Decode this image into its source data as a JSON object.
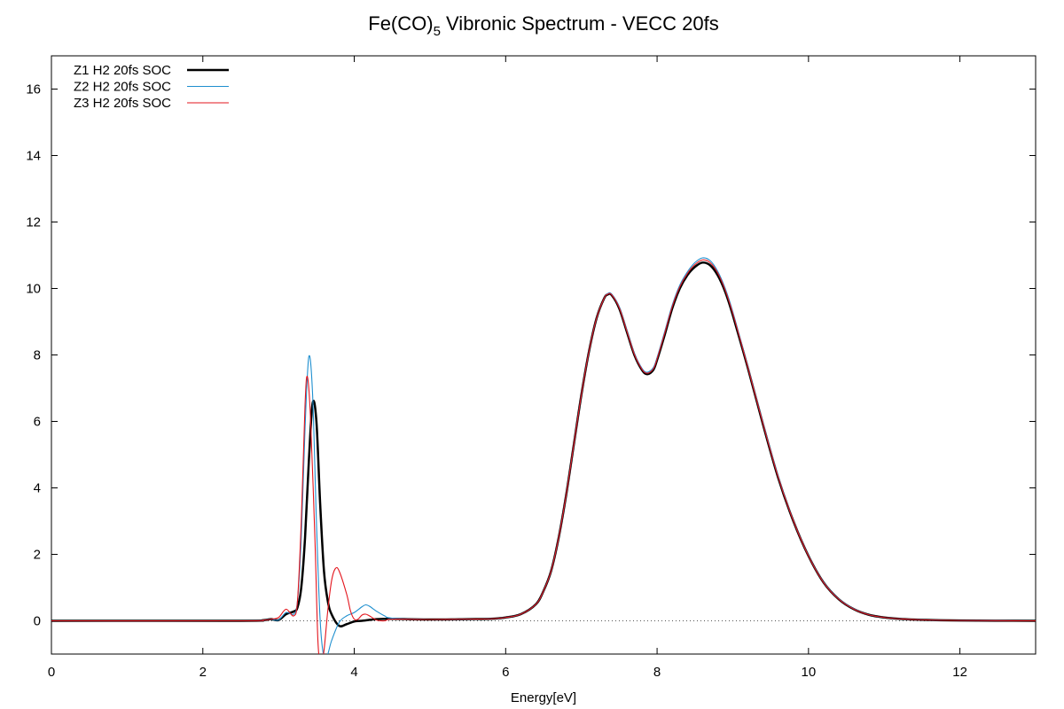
{
  "chart_data": {
    "type": "line",
    "title": "Fe(CO)",
    "title_subscript": "5",
    "title_rest": " Vibronic Spectrum - VECC 20fs",
    "xlabel": "Energy[eV]",
    "ylabel": "",
    "xlim": [
      0,
      13
    ],
    "ylim": [
      -1,
      17
    ],
    "xticks": [
      0,
      2,
      4,
      6,
      8,
      10,
      12
    ],
    "yticks": [
      0,
      2,
      4,
      6,
      8,
      10,
      12,
      14,
      16
    ],
    "grid": false,
    "legend_position": "top-left",
    "zero_line": {
      "y": 0,
      "style": "dotted"
    },
    "series": [
      {
        "name": "Z1 H2 20fs SOC",
        "color": "#000000",
        "style": "thick",
        "points": [
          [
            0,
            0
          ],
          [
            2.5,
            0
          ],
          [
            2.8,
            0.02
          ],
          [
            2.9,
            0.05
          ],
          [
            3.0,
            0.02
          ],
          [
            3.1,
            0.2
          ],
          [
            3.2,
            0.28
          ],
          [
            3.25,
            0.4
          ],
          [
            3.3,
            1.0
          ],
          [
            3.35,
            2.5
          ],
          [
            3.4,
            4.8
          ],
          [
            3.45,
            6.55
          ],
          [
            3.5,
            6.0
          ],
          [
            3.55,
            3.5
          ],
          [
            3.6,
            1.5
          ],
          [
            3.65,
            0.6
          ],
          [
            3.7,
            0.2
          ],
          [
            3.8,
            -0.15
          ],
          [
            3.9,
            -0.1
          ],
          [
            4.0,
            -0.02
          ],
          [
            4.1,
            0.0
          ],
          [
            4.3,
            0.05
          ],
          [
            4.5,
            0.06
          ],
          [
            5.0,
            0.04
          ],
          [
            5.5,
            0.05
          ],
          [
            5.8,
            0.06
          ],
          [
            6.0,
            0.1
          ],
          [
            6.2,
            0.2
          ],
          [
            6.4,
            0.5
          ],
          [
            6.5,
            0.9
          ],
          [
            6.6,
            1.5
          ],
          [
            6.7,
            2.5
          ],
          [
            6.8,
            3.8
          ],
          [
            6.9,
            5.3
          ],
          [
            7.0,
            6.8
          ],
          [
            7.1,
            8.1
          ],
          [
            7.2,
            9.1
          ],
          [
            7.3,
            9.7
          ],
          [
            7.35,
            9.82
          ],
          [
            7.4,
            9.8
          ],
          [
            7.5,
            9.4
          ],
          [
            7.6,
            8.7
          ],
          [
            7.7,
            8.0
          ],
          [
            7.8,
            7.55
          ],
          [
            7.87,
            7.42
          ],
          [
            7.95,
            7.55
          ],
          [
            8.0,
            7.85
          ],
          [
            8.1,
            8.6
          ],
          [
            8.2,
            9.4
          ],
          [
            8.3,
            10.0
          ],
          [
            8.4,
            10.4
          ],
          [
            8.5,
            10.65
          ],
          [
            8.6,
            10.78
          ],
          [
            8.7,
            10.7
          ],
          [
            8.8,
            10.4
          ],
          [
            8.9,
            9.9
          ],
          [
            9.0,
            9.2
          ],
          [
            9.2,
            7.6
          ],
          [
            9.4,
            5.9
          ],
          [
            9.6,
            4.3
          ],
          [
            9.8,
            3.0
          ],
          [
            10.0,
            1.95
          ],
          [
            10.2,
            1.15
          ],
          [
            10.4,
            0.65
          ],
          [
            10.6,
            0.35
          ],
          [
            10.8,
            0.18
          ],
          [
            11.0,
            0.1
          ],
          [
            11.2,
            0.06
          ],
          [
            11.5,
            0.03
          ],
          [
            12.0,
            0.01
          ],
          [
            13.0,
            0.0
          ]
        ]
      },
      {
        "name": "Z2 H2 20fs SOC",
        "color": "#1e8fcf",
        "style": "thin",
        "points": [
          [
            0,
            0
          ],
          [
            2.5,
            0
          ],
          [
            2.8,
            0.02
          ],
          [
            2.9,
            0.05
          ],
          [
            3.0,
            0.02
          ],
          [
            3.1,
            0.25
          ],
          [
            3.2,
            0.2
          ],
          [
            3.25,
            0.6
          ],
          [
            3.3,
            2.5
          ],
          [
            3.35,
            5.8
          ],
          [
            3.4,
            7.95
          ],
          [
            3.45,
            6.8
          ],
          [
            3.5,
            3.0
          ],
          [
            3.55,
            0.0
          ],
          [
            3.6,
            -1.1
          ],
          [
            3.65,
            -1.0
          ],
          [
            3.7,
            -0.6
          ],
          [
            3.8,
            -0.05
          ],
          [
            3.9,
            0.15
          ],
          [
            4.0,
            0.25
          ],
          [
            4.1,
            0.42
          ],
          [
            4.15,
            0.48
          ],
          [
            4.2,
            0.44
          ],
          [
            4.3,
            0.28
          ],
          [
            4.4,
            0.15
          ],
          [
            4.5,
            0.08
          ],
          [
            5.0,
            0.04
          ],
          [
            5.5,
            0.05
          ],
          [
            5.8,
            0.06
          ],
          [
            6.0,
            0.1
          ],
          [
            6.2,
            0.2
          ],
          [
            6.4,
            0.5
          ],
          [
            6.5,
            0.9
          ],
          [
            6.6,
            1.5
          ],
          [
            6.7,
            2.5
          ],
          [
            6.8,
            3.8
          ],
          [
            6.9,
            5.3
          ],
          [
            7.0,
            6.8
          ],
          [
            7.1,
            8.1
          ],
          [
            7.2,
            9.1
          ],
          [
            7.3,
            9.7
          ],
          [
            7.35,
            9.85
          ],
          [
            7.4,
            9.83
          ],
          [
            7.5,
            9.45
          ],
          [
            7.6,
            8.75
          ],
          [
            7.7,
            8.05
          ],
          [
            7.8,
            7.6
          ],
          [
            7.87,
            7.48
          ],
          [
            7.95,
            7.62
          ],
          [
            8.0,
            7.92
          ],
          [
            8.1,
            8.7
          ],
          [
            8.2,
            9.5
          ],
          [
            8.3,
            10.1
          ],
          [
            8.4,
            10.5
          ],
          [
            8.5,
            10.78
          ],
          [
            8.6,
            10.92
          ],
          [
            8.7,
            10.84
          ],
          [
            8.8,
            10.52
          ],
          [
            8.9,
            10.0
          ],
          [
            9.0,
            9.3
          ],
          [
            9.2,
            7.65
          ],
          [
            9.4,
            5.95
          ],
          [
            9.6,
            4.35
          ],
          [
            9.8,
            3.02
          ],
          [
            10.0,
            1.96
          ],
          [
            10.2,
            1.16
          ],
          [
            10.4,
            0.66
          ],
          [
            10.6,
            0.36
          ],
          [
            10.8,
            0.18
          ],
          [
            11.0,
            0.1
          ],
          [
            11.2,
            0.06
          ],
          [
            11.5,
            0.03
          ],
          [
            12.0,
            0.01
          ],
          [
            13.0,
            0.0
          ]
        ]
      },
      {
        "name": "Z3 H2 20fs SOC",
        "color": "#e3141c",
        "style": "thin",
        "points": [
          [
            0,
            0
          ],
          [
            2.5,
            0
          ],
          [
            2.8,
            0.02
          ],
          [
            2.9,
            0.05
          ],
          [
            3.0,
            0.1
          ],
          [
            3.1,
            0.35
          ],
          [
            3.2,
            0.15
          ],
          [
            3.25,
            0.6
          ],
          [
            3.3,
            3.0
          ],
          [
            3.35,
            6.5
          ],
          [
            3.38,
            7.35
          ],
          [
            3.42,
            6.2
          ],
          [
            3.48,
            2.5
          ],
          [
            3.52,
            -0.6
          ],
          [
            3.56,
            -1.3
          ],
          [
            3.6,
            -0.9
          ],
          [
            3.65,
            0.3
          ],
          [
            3.7,
            1.2
          ],
          [
            3.75,
            1.57
          ],
          [
            3.8,
            1.5
          ],
          [
            3.9,
            0.8
          ],
          [
            3.95,
            0.3
          ],
          [
            4.0,
            0.05
          ],
          [
            4.05,
            0.05
          ],
          [
            4.1,
            0.17
          ],
          [
            4.15,
            0.2
          ],
          [
            4.2,
            0.15
          ],
          [
            4.3,
            0.02
          ],
          [
            4.4,
            0.0
          ],
          [
            4.5,
            0.05
          ],
          [
            5.0,
            0.04
          ],
          [
            5.5,
            0.05
          ],
          [
            5.8,
            0.06
          ],
          [
            6.0,
            0.1
          ],
          [
            6.2,
            0.2
          ],
          [
            6.4,
            0.5
          ],
          [
            6.5,
            0.9
          ],
          [
            6.6,
            1.5
          ],
          [
            6.7,
            2.5
          ],
          [
            6.8,
            3.8
          ],
          [
            6.9,
            5.3
          ],
          [
            7.0,
            6.8
          ],
          [
            7.1,
            8.1
          ],
          [
            7.2,
            9.1
          ],
          [
            7.3,
            9.7
          ],
          [
            7.35,
            9.83
          ],
          [
            7.4,
            9.81
          ],
          [
            7.5,
            9.42
          ],
          [
            7.6,
            8.72
          ],
          [
            7.7,
            8.02
          ],
          [
            7.8,
            7.57
          ],
          [
            7.87,
            7.45
          ],
          [
            7.95,
            7.58
          ],
          [
            8.0,
            7.88
          ],
          [
            8.1,
            8.65
          ],
          [
            8.2,
            9.45
          ],
          [
            8.3,
            10.05
          ],
          [
            8.4,
            10.45
          ],
          [
            8.5,
            10.72
          ],
          [
            8.6,
            10.86
          ],
          [
            8.7,
            10.78
          ],
          [
            8.8,
            10.47
          ],
          [
            8.9,
            9.95
          ],
          [
            9.0,
            9.25
          ],
          [
            9.2,
            7.62
          ],
          [
            9.4,
            5.92
          ],
          [
            9.6,
            4.32
          ],
          [
            9.8,
            3.01
          ],
          [
            10.0,
            1.95
          ],
          [
            10.2,
            1.15
          ],
          [
            10.4,
            0.65
          ],
          [
            10.6,
            0.35
          ],
          [
            10.8,
            0.18
          ],
          [
            11.0,
            0.1
          ],
          [
            11.2,
            0.06
          ],
          [
            11.5,
            0.03
          ],
          [
            12.0,
            0.01
          ],
          [
            13.0,
            0.0
          ]
        ]
      }
    ]
  }
}
